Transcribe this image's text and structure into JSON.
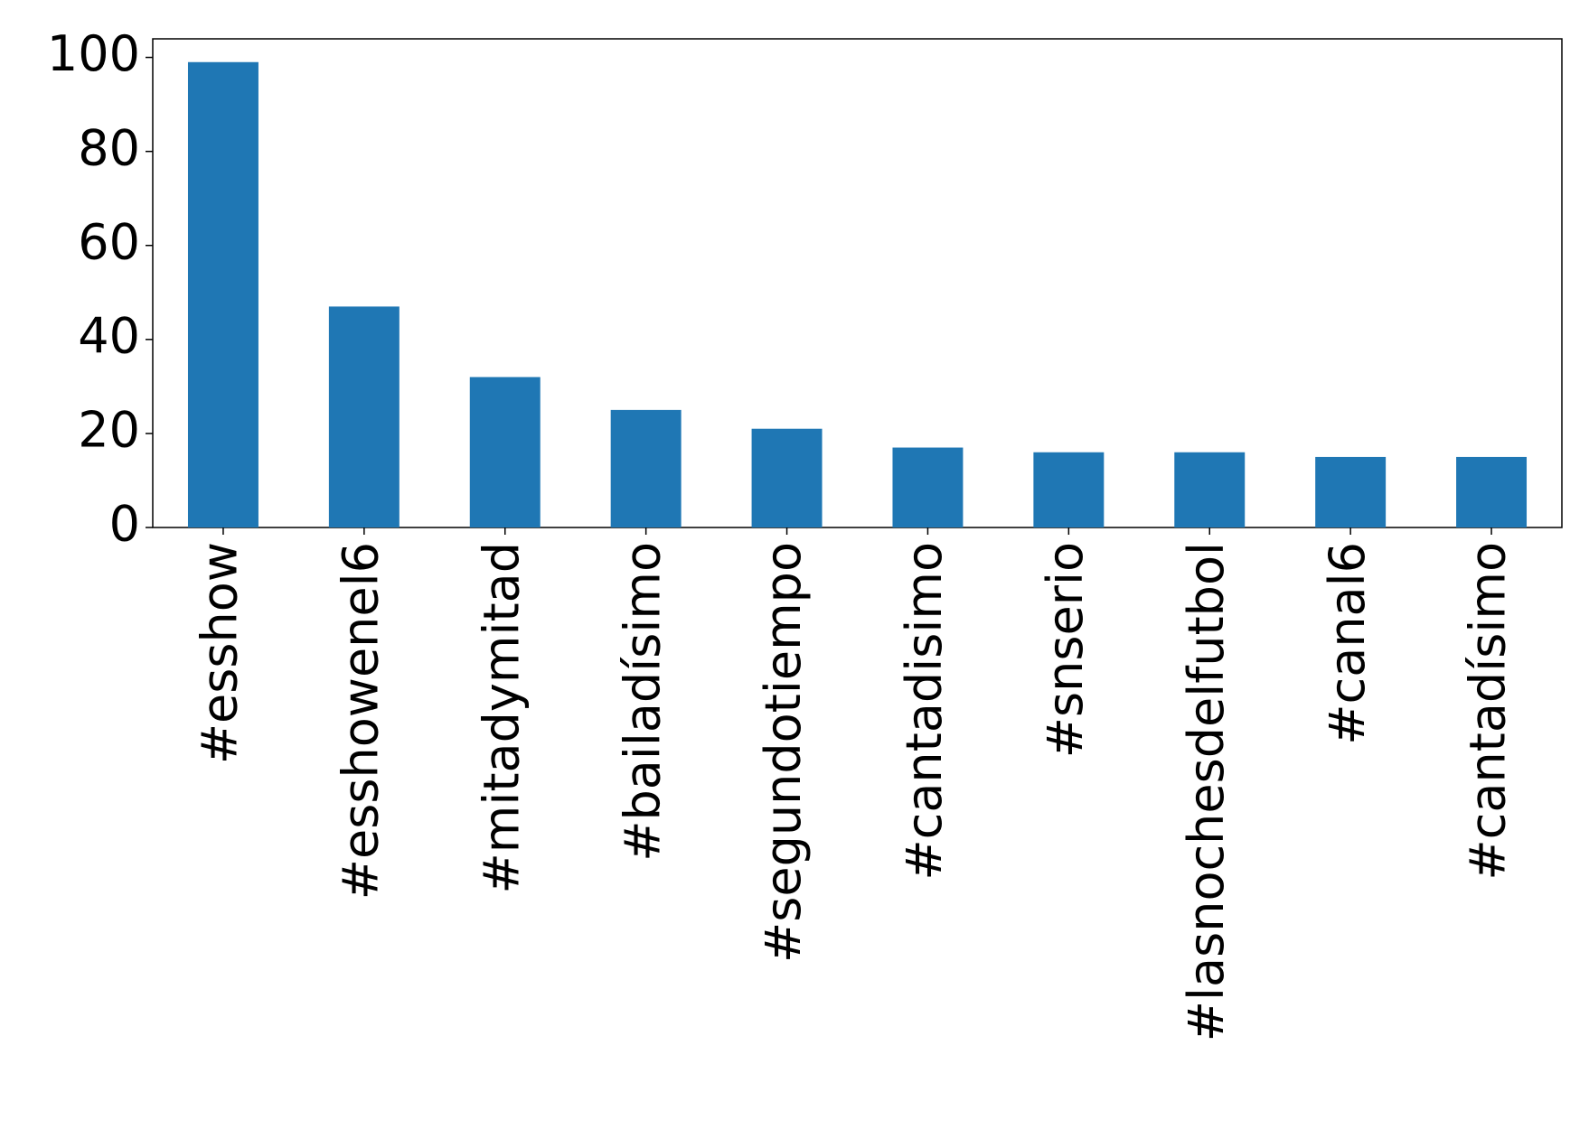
{
  "chart_data": {
    "type": "bar",
    "categories": [
      "#esshow",
      "#esshowenel6",
      "#mitadymitad",
      "#bailadísimo",
      "#segundotiempo",
      "#cantadisimo",
      "#snserio",
      "#lasnochesdelfutbol",
      "#canal6",
      "#cantadísimo"
    ],
    "values": [
      99,
      47,
      32,
      25,
      21,
      17,
      16,
      16,
      15,
      15
    ],
    "color": "#1f77b4",
    "ylim": [
      0,
      103.95
    ],
    "yticks": [
      0,
      20,
      40,
      60,
      80,
      100
    ],
    "grid": false
  }
}
